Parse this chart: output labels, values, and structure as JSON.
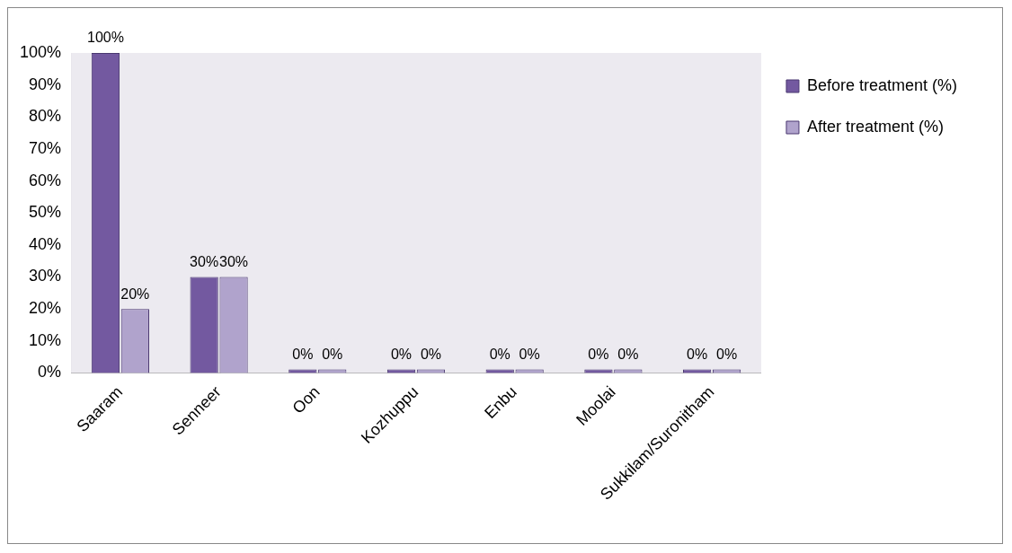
{
  "chart_data": {
    "type": "bar",
    "categories": [
      "Saaram",
      "Senneer",
      "Oon",
      "Kozhuppu",
      "Enbu",
      "Moolai",
      "Sukkilam/Suronitham"
    ],
    "series": [
      {
        "name": "Before treatment (%)",
        "color": "#7359a0",
        "values": [
          100,
          30,
          0,
          0,
          0,
          0,
          0
        ],
        "value_labels": [
          "100%",
          "30%",
          "0%",
          "0%",
          "0%",
          "0%",
          "0%"
        ]
      },
      {
        "name": "After treatment (%)",
        "color": "#b0a3cc",
        "values": [
          20,
          30,
          0,
          0,
          0,
          0,
          0
        ],
        "value_labels": [
          "20%",
          "30%",
          "0%",
          "0%",
          "0%",
          "0%",
          "0%"
        ]
      }
    ],
    "ylim": [
      0,
      100
    ],
    "yticks": [
      {
        "value": 0,
        "label": "0%"
      },
      {
        "value": 10,
        "label": "10%"
      },
      {
        "value": 20,
        "label": "20%"
      },
      {
        "value": 30,
        "label": "30%"
      },
      {
        "value": 40,
        "label": "40%"
      },
      {
        "value": 50,
        "label": "50%"
      },
      {
        "value": 60,
        "label": "60%"
      },
      {
        "value": 70,
        "label": "70%"
      },
      {
        "value": 80,
        "label": "80%"
      },
      {
        "value": 90,
        "label": "90%"
      },
      {
        "value": 100,
        "label": "100%"
      }
    ],
    "grid": false,
    "legend": "right"
  }
}
